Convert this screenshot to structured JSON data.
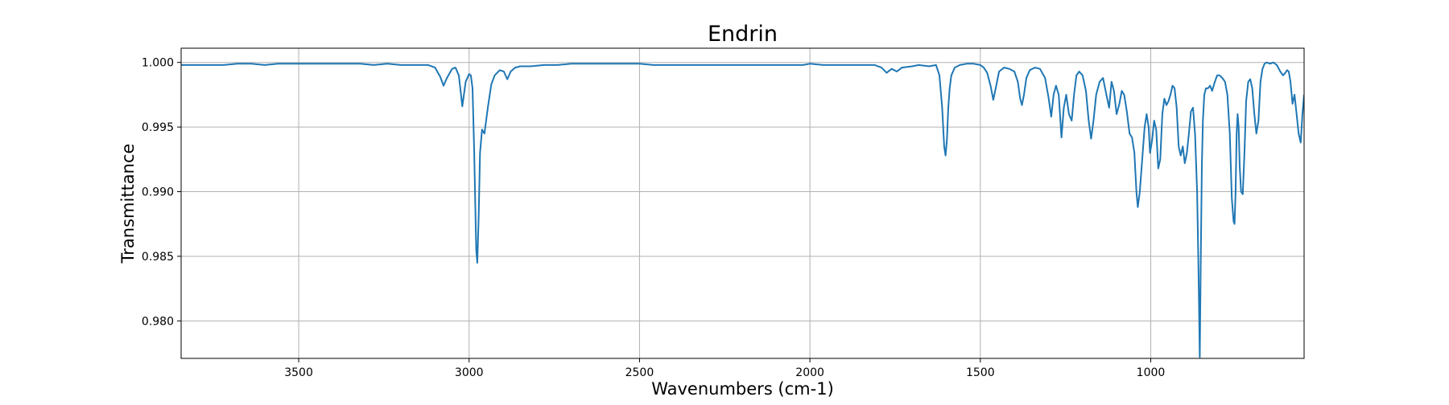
{
  "chart_data": {
    "type": "line",
    "title": "Endrin",
    "xlabel": "Wavenumbers (cm-1)",
    "ylabel": "Transmittance",
    "xlim": [
      3845,
      550
    ],
    "ylim": [
      0.9771,
      1.0011
    ],
    "x_reversed": true,
    "grid": true,
    "legend": "none",
    "line_color": "#1f77b4",
    "x_ticks": [
      {
        "value": 3500,
        "label": "3500"
      },
      {
        "value": 3000,
        "label": "3000"
      },
      {
        "value": 2500,
        "label": "2500"
      },
      {
        "value": 2000,
        "label": "2000"
      },
      {
        "value": 1500,
        "label": "1500"
      },
      {
        "value": 1000,
        "label": "1000"
      }
    ],
    "y_ticks": [
      {
        "value": 0.98,
        "label": "0.980"
      },
      {
        "value": 0.985,
        "label": "0.985"
      },
      {
        "value": 0.99,
        "label": "0.990"
      },
      {
        "value": 0.995,
        "label": "0.995"
      },
      {
        "value": 1.0,
        "label": "1.000"
      }
    ],
    "series": [
      {
        "x": [
          3845,
          3800,
          3760,
          3720,
          3680,
          3660,
          3640,
          3600,
          3560,
          3520,
          3480,
          3440,
          3400,
          3360,
          3320,
          3280,
          3240,
          3200,
          3160,
          3120,
          3100,
          3085,
          3075,
          3065,
          3050,
          3040,
          3030,
          3020,
          3010,
          3000,
          2995,
          2990,
          2985,
          2982,
          2979,
          2976,
          2972,
          2968,
          2962,
          2955,
          2945,
          2935,
          2925,
          2910,
          2898,
          2888,
          2878,
          2865,
          2850,
          2820,
          2780,
          2740,
          2700,
          2660,
          2620,
          2580,
          2540,
          2500,
          2460,
          2420,
          2380,
          2340,
          2300,
          2260,
          2220,
          2180,
          2140,
          2100,
          2060,
          2020,
          2000,
          1960,
          1920,
          1880,
          1840,
          1810,
          1790,
          1775,
          1760,
          1745,
          1730,
          1700,
          1680,
          1650,
          1630,
          1620,
          1612,
          1606,
          1602,
          1598,
          1594,
          1590,
          1585,
          1575,
          1560,
          1540,
          1520,
          1500,
          1490,
          1480,
          1470,
          1462,
          1455,
          1445,
          1430,
          1415,
          1400,
          1390,
          1383,
          1378,
          1372,
          1365,
          1355,
          1340,
          1325,
          1310,
          1300,
          1292,
          1285,
          1278,
          1270,
          1262,
          1255,
          1248,
          1240,
          1232,
          1225,
          1218,
          1210,
          1200,
          1190,
          1182,
          1175,
          1168,
          1160,
          1150,
          1140,
          1130,
          1122,
          1115,
          1108,
          1100,
          1092,
          1085,
          1078,
          1070,
          1062,
          1055,
          1048,
          1042,
          1038,
          1032,
          1025,
          1018,
          1012,
          1006,
          1002,
          996,
          990,
          984,
          978,
          972,
          966,
          960,
          954,
          948,
          942,
          936,
          930,
          924,
          918,
          912,
          906,
          900,
          894,
          888,
          882,
          876,
          870,
          864,
          860,
          856,
          853,
          850,
          847,
          843,
          838,
          832,
          826,
          820,
          812,
          805,
          798,
          790,
          782,
          775,
          768,
          762,
          757,
          754,
          751,
          748,
          745,
          742,
          739,
          735,
          730,
          725,
          720,
          714,
          708,
          702,
          696,
          690,
          684,
          678,
          672,
          666,
          660,
          650,
          640,
          630,
          620,
          612,
          605,
          600,
          595,
          590,
          584,
          578,
          572,
          566,
          560,
          555,
          550
        ],
        "y": [
          0.9998,
          0.9998,
          0.9998,
          0.9998,
          0.9999,
          0.9999,
          0.9999,
          0.9998,
          0.9999,
          0.9999,
          0.9999,
          0.9999,
          0.9999,
          0.9999,
          0.9999,
          0.9998,
          0.9999,
          0.9998,
          0.9998,
          0.9998,
          0.9996,
          0.9989,
          0.9982,
          0.9988,
          0.9995,
          0.9996,
          0.999,
          0.9966,
          0.9985,
          0.9991,
          0.999,
          0.998,
          0.993,
          0.989,
          0.9855,
          0.9845,
          0.988,
          0.993,
          0.9948,
          0.9945,
          0.9965,
          0.9983,
          0.999,
          0.9994,
          0.9993,
          0.9987,
          0.9993,
          0.9996,
          0.9997,
          0.9997,
          0.9998,
          0.9998,
          0.9999,
          0.9999,
          0.9999,
          0.9999,
          0.9999,
          0.9999,
          0.9998,
          0.9998,
          0.9998,
          0.9998,
          0.9998,
          0.9998,
          0.9998,
          0.9998,
          0.9998,
          0.9998,
          0.9998,
          0.9998,
          0.9999,
          0.9998,
          0.9998,
          0.9998,
          0.9998,
          0.9998,
          0.9996,
          0.9992,
          0.9995,
          0.9993,
          0.9996,
          0.9997,
          0.9998,
          0.9997,
          0.9998,
          0.999,
          0.9965,
          0.9935,
          0.9928,
          0.994,
          0.9965,
          0.998,
          0.999,
          0.9996,
          0.9998,
          0.9999,
          0.9999,
          0.9998,
          0.9996,
          0.9992,
          0.9982,
          0.9971,
          0.998,
          0.9993,
          0.9996,
          0.9995,
          0.9993,
          0.9985,
          0.9972,
          0.9967,
          0.9975,
          0.9988,
          0.9994,
          0.9996,
          0.9995,
          0.9988,
          0.9973,
          0.9958,
          0.9975,
          0.9982,
          0.9975,
          0.9942,
          0.9965,
          0.9975,
          0.996,
          0.9955,
          0.9975,
          0.999,
          0.9993,
          0.999,
          0.9978,
          0.9955,
          0.9941,
          0.9955,
          0.9975,
          0.9985,
          0.9988,
          0.9975,
          0.9965,
          0.9985,
          0.9978,
          0.996,
          0.9968,
          0.9978,
          0.9975,
          0.9962,
          0.9945,
          0.9942,
          0.993,
          0.99,
          0.9888,
          0.99,
          0.9925,
          0.995,
          0.996,
          0.995,
          0.993,
          0.994,
          0.9955,
          0.9948,
          0.9918,
          0.9925,
          0.996,
          0.9972,
          0.9967,
          0.997,
          0.9975,
          0.9982,
          0.998,
          0.9965,
          0.9935,
          0.9928,
          0.9935,
          0.9922,
          0.993,
          0.9945,
          0.9962,
          0.9965,
          0.9945,
          0.99,
          0.984,
          0.9772,
          0.985,
          0.992,
          0.9955,
          0.9975,
          0.998,
          0.998,
          0.9982,
          0.9978,
          0.9985,
          0.999,
          0.999,
          0.9988,
          0.9985,
          0.9975,
          0.9945,
          0.9895,
          0.9877,
          0.9875,
          0.99,
          0.9945,
          0.996,
          0.995,
          0.992,
          0.99,
          0.9898,
          0.993,
          0.997,
          0.9985,
          0.9987,
          0.998,
          0.996,
          0.9945,
          0.9955,
          0.9985,
          0.9995,
          0.9999,
          1.0,
          0.9999,
          1.0,
          0.9998,
          0.9993,
          0.999,
          0.9992,
          0.9994,
          0.9993,
          0.9985,
          0.9968,
          0.9975,
          0.996,
          0.9945,
          0.9938,
          0.996,
          0.9975
        ]
      }
    ]
  }
}
